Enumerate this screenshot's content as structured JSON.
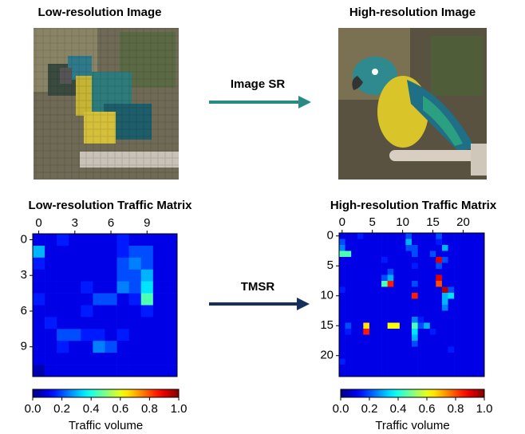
{
  "labels": {
    "image_lr": "Low-resolution Image",
    "image_hr": "High-resolution Image",
    "arrow_image": "Image SR",
    "arrow_tm": "TMSR"
  },
  "chart_data": [
    {
      "type": "heatmap",
      "title": "Low-resolution Traffic Matrix",
      "colormap": "jet",
      "xlim": [
        -0.5,
        11.5
      ],
      "ylim": [
        11.5,
        -0.5
      ],
      "xticks": [
        0,
        3,
        6,
        9
      ],
      "yticks": [
        0,
        3,
        6,
        9
      ],
      "values": [
        [
          0.1,
          0.1,
          0.15,
          0.1,
          0.1,
          0.1,
          0.1,
          0.15,
          0.1,
          0.1,
          0.1,
          0.1
        ],
        [
          0.3,
          0.1,
          0.1,
          0.1,
          0.1,
          0.1,
          0.1,
          0.15,
          0.2,
          0.2,
          0.1,
          0.1
        ],
        [
          0.15,
          0.1,
          0.1,
          0.1,
          0.1,
          0.1,
          0.1,
          0.2,
          0.25,
          0.2,
          0.1,
          0.1
        ],
        [
          0.1,
          0.1,
          0.1,
          0.1,
          0.1,
          0.1,
          0.1,
          0.2,
          0.2,
          0.3,
          0.1,
          0.1
        ],
        [
          0.1,
          0.1,
          0.1,
          0.1,
          0.15,
          0.1,
          0.1,
          0.25,
          0.2,
          0.35,
          0.1,
          0.1
        ],
        [
          0.15,
          0.1,
          0.1,
          0.1,
          0.1,
          0.2,
          0.2,
          0.1,
          0.15,
          0.45,
          0.1,
          0.1
        ],
        [
          0.1,
          0.1,
          0.1,
          0.1,
          0.15,
          0.1,
          0.1,
          0.1,
          0.1,
          0.15,
          0.1,
          0.1
        ],
        [
          0.1,
          0.15,
          0.1,
          0.1,
          0.1,
          0.1,
          0.1,
          0.1,
          0.1,
          0.1,
          0.1,
          0.1
        ],
        [
          0.1,
          0.1,
          0.2,
          0.2,
          0.15,
          0.15,
          0.1,
          0.15,
          0.1,
          0.1,
          0.1,
          0.1
        ],
        [
          0.1,
          0.1,
          0.15,
          0.1,
          0.1,
          0.25,
          0.2,
          0.1,
          0.1,
          0.1,
          0.1,
          0.1
        ],
        [
          0.1,
          0.1,
          0.1,
          0.1,
          0.1,
          0.1,
          0.1,
          0.1,
          0.1,
          0.1,
          0.1,
          0.1
        ],
        [
          0.05,
          0.1,
          0.1,
          0.1,
          0.1,
          0.1,
          0.1,
          0.1,
          0.1,
          0.1,
          0.1,
          0.1
        ]
      ],
      "colorbar": {
        "lim": [
          0,
          1
        ],
        "label": "Traffic volume",
        "ticks": [
          {
            "value": 0,
            "label": "0.0"
          },
          0.2,
          0.4,
          0.6,
          0.8,
          {
            "value": 1,
            "label": "1.0"
          }
        ]
      }
    },
    {
      "type": "heatmap",
      "title": "High-resolution Traffic Matrix",
      "colormap": "jet",
      "xlim": [
        -0.5,
        23.5
      ],
      "ylim": [
        23.5,
        -0.5
      ],
      "xticks": [
        0,
        5,
        10,
        15,
        20
      ],
      "yticks": [
        0,
        5,
        10,
        15,
        20
      ],
      "values": [
        [
          0.1,
          0.1,
          0.1,
          0.15,
          0.1,
          0.1,
          0.1,
          0.1,
          0.1,
          0.1,
          0.1,
          0.2,
          0.1,
          0.1,
          0.1,
          0.1,
          0.2,
          0.1,
          0.1,
          0.1,
          0.1,
          0.1,
          0.1,
          0.1
        ],
        [
          0.2,
          0.1,
          0.1,
          0.1,
          0.1,
          0.1,
          0.1,
          0.1,
          0.1,
          0.1,
          0.1,
          0.3,
          0.1,
          0.1,
          0.1,
          0.1,
          0.15,
          0.1,
          0.1,
          0.1,
          0.1,
          0.1,
          0.1,
          0.1
        ],
        [
          0.25,
          0.1,
          0.1,
          0.1,
          0.1,
          0.1,
          0.1,
          0.1,
          0.1,
          0.1,
          0.1,
          0.2,
          0.2,
          0.1,
          0.1,
          0.1,
          0.1,
          0.3,
          0.1,
          0.1,
          0.1,
          0.1,
          0.1,
          0.1
        ],
        [
          0.45,
          0.45,
          0.1,
          0.1,
          0.1,
          0.1,
          0.1,
          0.1,
          0.1,
          0.1,
          0.1,
          0.1,
          0.2,
          0.1,
          0.1,
          0.2,
          0.1,
          0.1,
          0.1,
          0.1,
          0.1,
          0.1,
          0.1,
          0.1
        ],
        [
          0.1,
          0.1,
          0.1,
          0.1,
          0.1,
          0.1,
          0.1,
          0.15,
          0.1,
          0.1,
          0.1,
          0.1,
          0.1,
          0.1,
          0.1,
          0.1,
          0.9,
          0.2,
          0.1,
          0.1,
          0.1,
          0.1,
          0.1,
          0.1
        ],
        [
          0.1,
          0.1,
          0.1,
          0.1,
          0.1,
          0.1,
          0.1,
          0.1,
          0.1,
          0.1,
          0.1,
          0.1,
          0.15,
          0.1,
          0.1,
          0.1,
          0.2,
          0.1,
          0.1,
          0.1,
          0.1,
          0.1,
          0.1,
          0.1
        ],
        [
          0.1,
          0.1,
          0.1,
          0.1,
          0.1,
          0.1,
          0.1,
          0.1,
          0.2,
          0.1,
          0.1,
          0.1,
          0.1,
          0.1,
          0.1,
          0.1,
          0.1,
          0.1,
          0.1,
          0.1,
          0.1,
          0.1,
          0.1,
          0.1
        ],
        [
          0.1,
          0.1,
          0.1,
          0.1,
          0.1,
          0.1,
          0.1,
          0.2,
          0.3,
          0.1,
          0.1,
          0.1,
          0.1,
          0.1,
          0.1,
          0.1,
          0.9,
          0.1,
          0.1,
          0.1,
          0.1,
          0.1,
          0.1,
          0.1
        ],
        [
          0.1,
          0.1,
          0.1,
          0.1,
          0.1,
          0.1,
          0.1,
          0.45,
          0.85,
          0.1,
          0.1,
          0.1,
          0.2,
          0.1,
          0.1,
          0.1,
          0.8,
          0.1,
          0.1,
          0.1,
          0.1,
          0.1,
          0.1,
          0.1
        ],
        [
          0.15,
          0.1,
          0.1,
          0.1,
          0.1,
          0.1,
          0.1,
          0.1,
          0.1,
          0.1,
          0.1,
          0.1,
          0.1,
          0.1,
          0.1,
          0.1,
          0.1,
          0.95,
          0.2,
          0.1,
          0.1,
          0.1,
          0.1,
          0.1
        ],
        [
          0.1,
          0.1,
          0.1,
          0.1,
          0.1,
          0.1,
          0.1,
          0.1,
          0.1,
          0.1,
          0.1,
          0.1,
          0.85,
          0.1,
          0.1,
          0.1,
          0.1,
          0.3,
          0.35,
          0.1,
          0.1,
          0.1,
          0.1,
          0.1
        ],
        [
          0.1,
          0.1,
          0.1,
          0.1,
          0.1,
          0.1,
          0.1,
          0.1,
          0.1,
          0.1,
          0.1,
          0.1,
          0.1,
          0.1,
          0.1,
          0.1,
          0.1,
          0.3,
          0.1,
          0.1,
          0.1,
          0.1,
          0.1,
          0.1
        ],
        [
          0.1,
          0.1,
          0.1,
          0.1,
          0.1,
          0.1,
          0.1,
          0.1,
          0.1,
          0.1,
          0.1,
          0.1,
          0.1,
          0.1,
          0.1,
          0.1,
          0.1,
          0.25,
          0.1,
          0.1,
          0.1,
          0.1,
          0.1,
          0.1
        ],
        [
          0.1,
          0.1,
          0.1,
          0.1,
          0.1,
          0.1,
          0.1,
          0.1,
          0.1,
          0.1,
          0.1,
          0.1,
          0.1,
          0.1,
          0.1,
          0.1,
          0.1,
          0.1,
          0.1,
          0.1,
          0.1,
          0.1,
          0.1,
          0.1
        ],
        [
          0.1,
          0.1,
          0.1,
          0.1,
          0.1,
          0.1,
          0.1,
          0.1,
          0.1,
          0.1,
          0.1,
          0.1,
          0.25,
          0.15,
          0.1,
          0.1,
          0.1,
          0.1,
          0.1,
          0.1,
          0.1,
          0.1,
          0.1,
          0.1
        ],
        [
          0.1,
          0.2,
          0.1,
          0.1,
          0.65,
          0.1,
          0.1,
          0.1,
          0.62,
          0.62,
          0.1,
          0.1,
          0.45,
          0.2,
          0.3,
          0.1,
          0.1,
          0.1,
          0.1,
          0.1,
          0.1,
          0.1,
          0.1,
          0.1
        ],
        [
          0.1,
          0.15,
          0.1,
          0.1,
          0.85,
          0.1,
          0.1,
          0.1,
          0.1,
          0.1,
          0.1,
          0.1,
          0.35,
          0.1,
          0.1,
          0.15,
          0.1,
          0.1,
          0.1,
          0.1,
          0.1,
          0.1,
          0.1,
          0.1
        ],
        [
          0.1,
          0.1,
          0.1,
          0.1,
          0.1,
          0.1,
          0.1,
          0.1,
          0.1,
          0.1,
          0.1,
          0.1,
          0.3,
          0.1,
          0.1,
          0.1,
          0.1,
          0.1,
          0.1,
          0.1,
          0.1,
          0.1,
          0.1,
          0.1
        ],
        [
          0.1,
          0.1,
          0.1,
          0.1,
          0.1,
          0.1,
          0.1,
          0.1,
          0.1,
          0.1,
          0.1,
          0.1,
          0.2,
          0.1,
          0.1,
          0.1,
          0.1,
          0.1,
          0.1,
          0.1,
          0.1,
          0.1,
          0.1,
          0.1
        ],
        [
          0.1,
          0.1,
          0.1,
          0.1,
          0.1,
          0.1,
          0.1,
          0.1,
          0.1,
          0.1,
          0.1,
          0.1,
          0.1,
          0.1,
          0.1,
          0.1,
          0.1,
          0.1,
          0.15,
          0.1,
          0.1,
          0.1,
          0.1,
          0.1
        ],
        [
          0.1,
          0.1,
          0.1,
          0.1,
          0.1,
          0.1,
          0.1,
          0.1,
          0.1,
          0.1,
          0.1,
          0.1,
          0.1,
          0.1,
          0.1,
          0.1,
          0.1,
          0.1,
          0.1,
          0.1,
          0.1,
          0.1,
          0.1,
          0.1
        ],
        [
          0.15,
          0.1,
          0.1,
          0.1,
          0.1,
          0.1,
          0.1,
          0.1,
          0.1,
          0.1,
          0.1,
          0.1,
          0.1,
          0.1,
          0.1,
          0.1,
          0.1,
          0.1,
          0.1,
          0.1,
          0.1,
          0.1,
          0.1,
          0.1
        ],
        [
          0.1,
          0.1,
          0.1,
          0.1,
          0.1,
          0.1,
          0.1,
          0.1,
          0.1,
          0.1,
          0.1,
          0.1,
          0.1,
          0.1,
          0.1,
          0.1,
          0.1,
          0.1,
          0.1,
          0.1,
          0.1,
          0.1,
          0.1,
          0.1
        ],
        [
          0.1,
          0.1,
          0.1,
          0.1,
          0.1,
          0.1,
          0.1,
          0.1,
          0.1,
          0.1,
          0.1,
          0.1,
          0.1,
          0.1,
          0.1,
          0.1,
          0.1,
          0.1,
          0.1,
          0.1,
          0.1,
          0.1,
          0.1,
          0.1
        ]
      ],
      "colorbar": {
        "lim": [
          0,
          1
        ],
        "label": "Traffic volume",
        "ticks": [
          {
            "value": 0,
            "label": "0.0"
          },
          0.2,
          0.4,
          0.6,
          0.8,
          {
            "value": 1,
            "label": "1.0"
          }
        ]
      }
    }
  ]
}
